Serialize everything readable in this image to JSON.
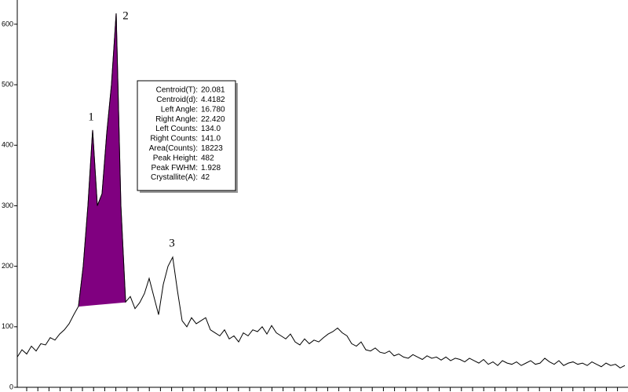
{
  "chart_data": {
    "type": "line",
    "values": [
      50,
      62,
      55,
      68,
      60,
      72,
      70,
      82,
      78,
      88,
      95,
      105,
      120,
      134,
      200,
      300,
      425,
      300,
      320,
      420,
      500,
      618,
      300,
      141,
      150,
      130,
      140,
      155,
      180,
      150,
      120,
      170,
      200,
      215,
      160,
      110,
      100,
      115,
      105,
      110,
      115,
      95,
      90,
      85,
      95,
      80,
      85,
      75,
      90,
      85,
      95,
      92,
      100,
      88,
      102,
      90,
      85,
      80,
      88,
      75,
      70,
      80,
      72,
      78,
      75,
      82,
      88,
      92,
      98,
      90,
      85,
      72,
      68,
      75,
      62,
      60,
      65,
      58,
      56,
      60,
      52,
      55,
      50,
      48,
      54,
      50,
      46,
      52,
      48,
      50,
      45,
      50,
      44,
      48,
      46,
      42,
      48,
      44,
      40,
      46,
      38,
      42,
      36,
      44,
      40,
      38,
      42,
      36,
      40,
      44,
      38,
      40,
      48,
      42,
      38,
      44,
      36,
      40,
      42,
      38,
      40,
      36,
      42,
      38,
      34,
      40,
      36,
      38,
      32,
      36
    ],
    "color": "#000000",
    "fill_color": "#800080",
    "ylim": [
      0,
      640
    ],
    "yticks": [
      0,
      100,
      200,
      300,
      400,
      500,
      600
    ],
    "peak_labels": [
      "1",
      "2",
      "3"
    ],
    "info_box": [
      {
        "label": "Centroid(T):",
        "value": "20.081"
      },
      {
        "label": "Centroid(d):",
        "value": "4.4182"
      },
      {
        "label": "Left Angle:",
        "value": "16.780"
      },
      {
        "label": "Right Angle:",
        "value": "22.420"
      },
      {
        "label": "Left Counts:",
        "value": "134.0"
      },
      {
        "label": "Right Counts:",
        "value": "141.0"
      },
      {
        "label": "Area(Counts):",
        "value": "18223"
      },
      {
        "label": "Peak Height:",
        "value": "482"
      },
      {
        "label": "Peak FWHM:",
        "value": "1.928"
      },
      {
        "label": "Crystallite(A):",
        "value": "42"
      }
    ]
  }
}
